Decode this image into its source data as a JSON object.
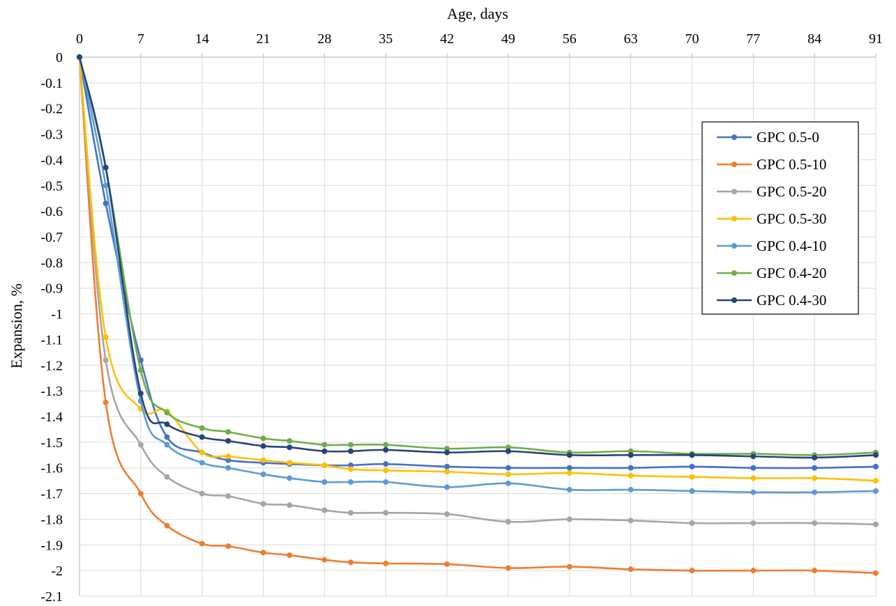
{
  "chart_data": {
    "type": "line",
    "title": "",
    "xlabel": "Age, days",
    "ylabel": "Expansion, %",
    "xlim": [
      0,
      91
    ],
    "ylim": [
      -2.1,
      0
    ],
    "x_ticks": [
      0,
      7,
      14,
      21,
      28,
      35,
      42,
      49,
      56,
      63,
      70,
      77,
      84,
      91
    ],
    "x_tick_labels": [
      "0",
      "7",
      "14",
      "21",
      "28",
      "35",
      "42",
      "49",
      "56",
      "63",
      "70",
      "77",
      "84",
      "91"
    ],
    "y_ticks": [
      0,
      -0.1,
      -0.2,
      -0.3,
      -0.4,
      -0.5,
      -0.6,
      -0.7,
      -0.8,
      -0.9,
      -1,
      -1.1,
      -1.2,
      -1.3,
      -1.4,
      -1.5,
      -1.6,
      -1.7,
      -1.8,
      -1.9,
      -2,
      -2.1
    ],
    "y_tick_labels": [
      "0",
      "-0.1",
      "-0.2",
      "-0.3",
      "-0.4",
      "-0.5",
      "-0.6",
      "-0.7",
      "-0.8",
      "-0.9",
      "-1",
      "-1.1",
      "-1.2",
      "-1.3",
      "-1.4",
      "-1.5",
      "-1.6",
      "-1.7",
      "-1.8",
      "-1.9",
      "-2",
      "-2.1"
    ],
    "x_axis_position": "top",
    "grid": true,
    "legend_position": "right",
    "x": [
      0,
      3,
      7,
      10,
      14,
      17,
      21,
      24,
      28,
      31,
      35,
      42,
      49,
      56,
      63,
      70,
      77,
      84,
      91
    ],
    "series": [
      {
        "name": "GPC 0.5-0",
        "color": "#4472C4",
        "values": [
          0,
          -0.57,
          -1.18,
          -1.48,
          -1.54,
          -1.57,
          -1.58,
          -1.585,
          -1.59,
          -1.59,
          -1.585,
          -1.595,
          -1.6,
          -1.6,
          -1.6,
          -1.595,
          -1.6,
          -1.6,
          -1.595
        ]
      },
      {
        "name": "GPC 0.5-10",
        "color": "#ED7D31",
        "values": [
          0,
          -1.345,
          -1.7,
          -1.825,
          -1.895,
          -1.905,
          -1.93,
          -1.94,
          -1.958,
          -1.968,
          -1.972,
          -1.975,
          -1.99,
          -1.985,
          -1.995,
          -2.0,
          -2.0,
          -2.0,
          -2.01
        ]
      },
      {
        "name": "GPC 0.5-20",
        "color": "#A5A5A5",
        "values": [
          0,
          -1.18,
          -1.51,
          -1.635,
          -1.7,
          -1.71,
          -1.74,
          -1.745,
          -1.765,
          -1.775,
          -1.775,
          -1.78,
          -1.81,
          -1.8,
          -1.805,
          -1.815,
          -1.815,
          -1.815,
          -1.82
        ]
      },
      {
        "name": "GPC 0.5-30",
        "color": "#FFC000",
        "values": [
          0,
          -1.09,
          -1.37,
          -1.38,
          -1.54,
          -1.555,
          -1.57,
          -1.58,
          -1.59,
          -1.605,
          -1.61,
          -1.615,
          -1.625,
          -1.62,
          -1.63,
          -1.635,
          -1.64,
          -1.64,
          -1.65
        ]
      },
      {
        "name": "GPC 0.4-10",
        "color": "#5B9BD5",
        "values": [
          0,
          -0.5,
          -1.34,
          -1.51,
          -1.58,
          -1.6,
          -1.625,
          -1.64,
          -1.655,
          -1.655,
          -1.655,
          -1.675,
          -1.66,
          -1.685,
          -1.685,
          -1.69,
          -1.695,
          -1.695,
          -1.69
        ]
      },
      {
        "name": "GPC 0.4-20",
        "color": "#70AD47",
        "values": [
          0,
          -0.43,
          -1.22,
          -1.385,
          -1.445,
          -1.46,
          -1.485,
          -1.495,
          -1.51,
          -1.51,
          -1.51,
          -1.525,
          -1.52,
          -1.54,
          -1.535,
          -1.545,
          -1.545,
          -1.55,
          -1.54
        ]
      },
      {
        "name": "GPC 0.4-30",
        "color": "#264478",
        "values": [
          0,
          -0.43,
          -1.31,
          -1.43,
          -1.48,
          -1.495,
          -1.515,
          -1.52,
          -1.535,
          -1.535,
          -1.53,
          -1.54,
          -1.535,
          -1.55,
          -1.55,
          -1.55,
          -1.555,
          -1.56,
          -1.55
        ]
      }
    ]
  }
}
